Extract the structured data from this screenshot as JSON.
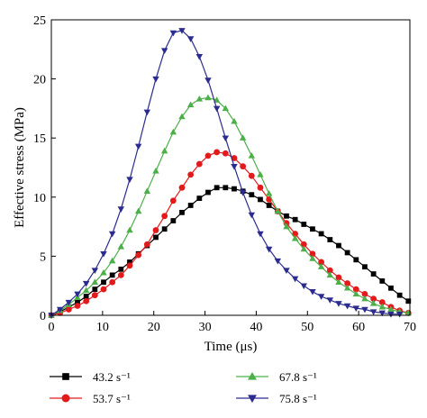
{
  "chart_data": {
    "type": "line",
    "xlabel": "Time (μs)",
    "ylabel": "Effective stress (MPa)",
    "xlim": [
      0,
      70
    ],
    "ylim": [
      0,
      25
    ],
    "xticks": [
      0,
      10,
      20,
      30,
      40,
      50,
      60,
      70
    ],
    "yticks": [
      0,
      5,
      10,
      15,
      20,
      25
    ],
    "grid": false,
    "legend_position": "bottom",
    "series": [
      {
        "name": "43.2 s⁻¹",
        "color": "#000000",
        "marker": "square",
        "x": [
          0,
          1.7,
          3.4,
          5.1,
          6.8,
          8.5,
          10.2,
          11.9,
          13.6,
          15.3,
          17,
          18.7,
          20.4,
          22.1,
          23.8,
          25.5,
          27.2,
          28.9,
          30.6,
          32.3,
          34,
          35.7,
          37.4,
          39.1,
          40.8,
          42.5,
          44.2,
          45.9,
          47.6,
          49.3,
          51,
          52.7,
          54.4,
          56.1,
          57.8,
          59.5,
          61.2,
          62.9,
          64.6,
          66.3,
          68,
          69.7
        ],
        "y": [
          0,
          0.3,
          0.7,
          1.1,
          1.6,
          2.2,
          2.8,
          3.4,
          3.9,
          4.5,
          5.2,
          5.9,
          6.6,
          7.3,
          8.0,
          8.7,
          9.3,
          9.9,
          10.4,
          10.8,
          10.8,
          10.7,
          10.5,
          10.2,
          9.8,
          9.3,
          8.8,
          8.4,
          8.1,
          7.7,
          7.3,
          6.9,
          6.4,
          5.9,
          5.3,
          4.7,
          4.1,
          3.5,
          2.9,
          2.3,
          1.7,
          1.2
        ]
      },
      {
        "name": "53.7 s⁻¹",
        "color": "#e31a1c",
        "marker": "circle",
        "x": [
          0,
          1.7,
          3.4,
          5.1,
          6.8,
          8.5,
          10.2,
          11.9,
          13.6,
          15.3,
          17,
          18.7,
          20.4,
          22.1,
          23.8,
          25.5,
          27.2,
          28.9,
          30.6,
          32.3,
          34,
          35.7,
          37.4,
          39.1,
          40.8,
          42.5,
          44.2,
          45.9,
          47.6,
          49.3,
          51,
          52.7,
          54.4,
          56.1,
          57.8,
          59.5,
          61.2,
          62.9,
          64.6,
          66.3,
          68,
          69.7
        ],
        "y": [
          0,
          0.2,
          0.5,
          0.8,
          1.2,
          1.7,
          2.2,
          2.8,
          3.4,
          4.2,
          5.1,
          6.0,
          7.2,
          8.4,
          9.7,
          10.8,
          11.9,
          12.8,
          13.5,
          13.8,
          13.7,
          13.3,
          12.6,
          11.8,
          10.8,
          9.8,
          8.8,
          7.8,
          6.9,
          6.0,
          5.2,
          4.5,
          3.8,
          3.2,
          2.7,
          2.2,
          1.8,
          1.4,
          1.1,
          0.7,
          0.4,
          0.2
        ]
      },
      {
        "name": "67.8 s⁻¹",
        "color": "#4daf4a",
        "marker": "triangle-up",
        "x": [
          0,
          1.7,
          3.4,
          5.1,
          6.8,
          8.5,
          10.2,
          11.9,
          13.6,
          15.3,
          17,
          18.7,
          20.4,
          22.1,
          23.8,
          25.5,
          27.2,
          28.9,
          30.6,
          32.3,
          34,
          35.7,
          37.4,
          39.1,
          40.8,
          42.5,
          44.2,
          45.9,
          47.6,
          49.3,
          51,
          52.7,
          54.4,
          56.1,
          57.8,
          59.5,
          61.2,
          62.9,
          64.6,
          66.3,
          68,
          69.7
        ],
        "y": [
          0,
          0.4,
          0.9,
          1.5,
          2.1,
          2.8,
          3.6,
          4.6,
          5.8,
          7.2,
          8.8,
          10.5,
          12.2,
          13.9,
          15.5,
          16.8,
          17.8,
          18.3,
          18.4,
          18.2,
          17.5,
          16.4,
          15.0,
          13.5,
          11.9,
          10.3,
          8.8,
          7.5,
          6.5,
          5.6,
          4.8,
          4.1,
          3.4,
          2.8,
          2.3,
          1.8,
          1.4,
          1.0,
          0.7,
          0.5,
          0.3,
          0.2
        ]
      },
      {
        "name": "75.8 s⁻¹",
        "color": "#2c2c8f",
        "marker": "triangle-down",
        "x": [
          0,
          1.7,
          3.4,
          5.1,
          6.8,
          8.5,
          10.2,
          11.9,
          13.6,
          15.3,
          17,
          18.7,
          20.4,
          22.1,
          23.8,
          25.5,
          27.2,
          28.9,
          30.6,
          32.3,
          34,
          35.7,
          37.4,
          39.1,
          40.8,
          42.5,
          44.2,
          45.9,
          47.6,
          49.3,
          51,
          52.7,
          54.4,
          56.1,
          57.8,
          59.5,
          61.2,
          62.9,
          64.6,
          66.3,
          68
        ],
        "y": [
          0,
          0.5,
          1.1,
          1.8,
          2.7,
          3.8,
          5.2,
          6.9,
          9.0,
          11.5,
          14.3,
          17.2,
          20.0,
          22.4,
          23.9,
          24.1,
          23.4,
          21.9,
          19.9,
          17.5,
          15.0,
          12.6,
          10.4,
          8.5,
          6.9,
          5.6,
          4.6,
          3.8,
          3.1,
          2.5,
          2.0,
          1.6,
          1.3,
          1.0,
          0.8,
          0.6,
          0.5,
          0.3,
          0.2,
          0.1,
          0.1
        ]
      }
    ]
  }
}
